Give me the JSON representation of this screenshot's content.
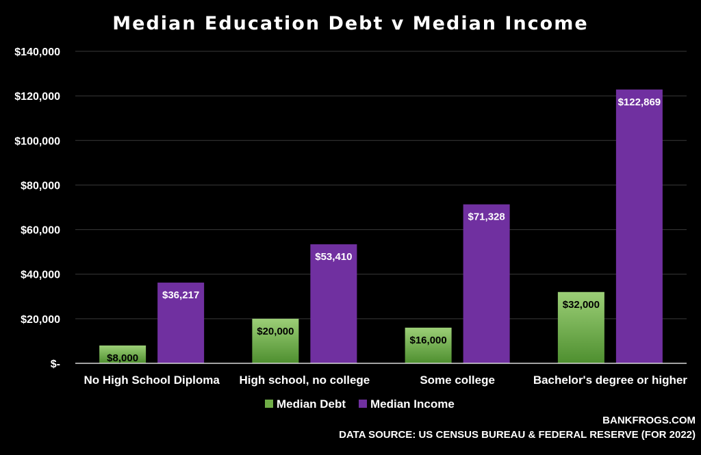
{
  "chart_data": {
    "type": "bar",
    "title": "Median Education Debt v Median Income",
    "categories": [
      "No High School Diploma",
      "High school, no college",
      "Some college",
      "Bachelor's degree or higher"
    ],
    "series": [
      {
        "name": "Median Debt",
        "values": [
          8000,
          20000,
          16000,
          32000
        ],
        "labels": [
          "$8,000",
          "$20,000",
          "$16,000",
          "$32,000"
        ],
        "color": "#70ad47",
        "color_light": "#a8d08d",
        "label_color": "#000000"
      },
      {
        "name": "Median Income",
        "values": [
          36217,
          53410,
          71328,
          122869
        ],
        "labels": [
          "$36,217",
          "$53,410",
          "$71,328",
          "$122,869"
        ],
        "color": "#7030a0",
        "label_color": "#ffffff"
      }
    ],
    "ylim": [
      0,
      140000
    ],
    "yticks": [
      0,
      20000,
      40000,
      60000,
      80000,
      100000,
      120000,
      140000
    ],
    "ytick_labels": [
      "$-",
      "$20,000",
      "$40,000",
      "$60,000",
      "$80,000",
      "$100,000",
      "$120,000",
      "$140,000"
    ],
    "grid": true,
    "legend_position": "bottom"
  },
  "footer": {
    "site": "BANKFROGS.COM",
    "source": "DATA SOURCE: US CENSUS BUREAU & FEDERAL RESERVE (FOR 2022)"
  },
  "colors": {
    "background": "#000000",
    "gridline": "#3a3a3a",
    "axis": "#d9d9d9"
  }
}
